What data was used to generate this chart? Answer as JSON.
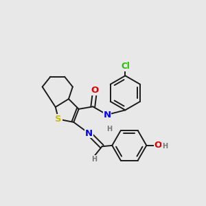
{
  "bg_color": "#e8e8e8",
  "bond_color": "#1a1a1a",
  "bond_width": 1.4,
  "atom_colors": {
    "S": "#ccbb00",
    "N": "#0000ee",
    "O": "#dd0000",
    "Cl": "#22bb00",
    "H": "#777777"
  },
  "font_size": 8.5,
  "font_size_small": 7.0
}
